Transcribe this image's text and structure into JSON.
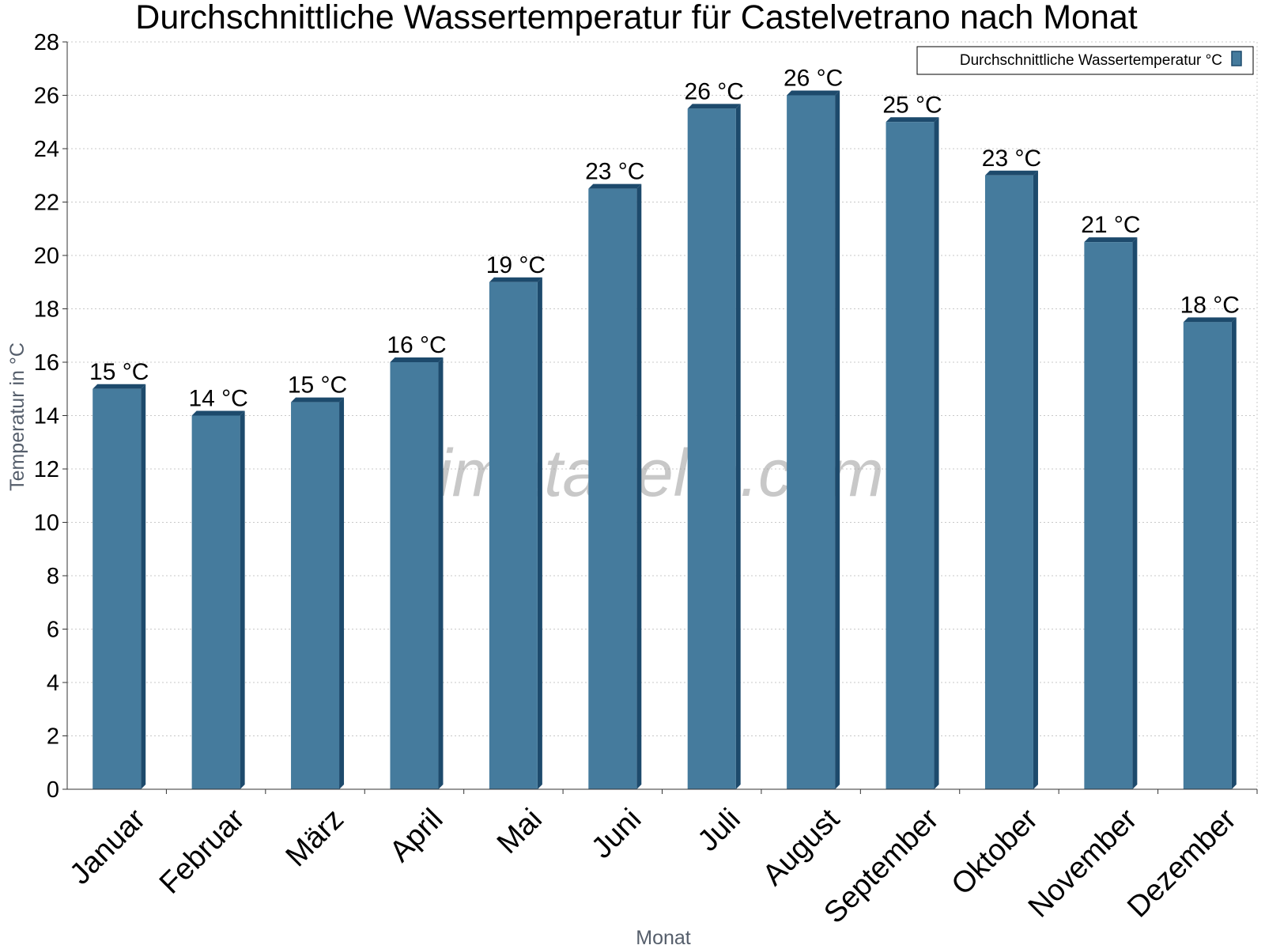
{
  "chart_data": {
    "type": "bar",
    "title": "Durchschnittliche Wassertemperatur für Castelvetrano nach Monat",
    "xlabel": "Monat",
    "ylabel": "Temperatur in °C",
    "ylim": [
      0,
      28
    ],
    "y_ticks": [
      "0",
      "2",
      "4",
      "6",
      "8",
      "10",
      "12",
      "14",
      "16",
      "18",
      "20",
      "22",
      "24",
      "26",
      "28"
    ],
    "grid": true,
    "legend_position": "top-right",
    "categories": [
      "Januar",
      "Februar",
      "März",
      "April",
      "Mai",
      "Juni",
      "Juli",
      "August",
      "September",
      "Oktober",
      "November",
      "Dezember"
    ],
    "series": [
      {
        "name": "Durchschnittliche Wassertemperatur °C",
        "color": "#457b9d",
        "values": [
          15,
          14,
          14.5,
          16,
          19,
          22.5,
          25.5,
          26,
          25,
          23,
          20.5,
          17.5
        ],
        "labels": [
          "15 °C",
          "14 °C",
          "15 °C",
          "16 °C",
          "19 °C",
          "23 °C",
          "26 °C",
          "26 °C",
          "25 °C",
          "23 °C",
          "21 °C",
          "18 °C"
        ]
      }
    ],
    "watermark": "klimatabelle.com"
  }
}
